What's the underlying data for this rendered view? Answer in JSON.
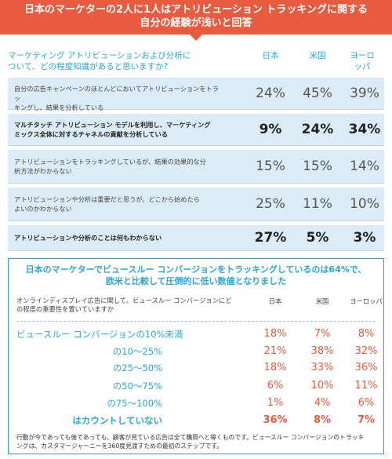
{
  "banner": {
    "line1": "日本のマーケターの2人に1人はアトリビューション トラッキングに関する",
    "line2": "自分の経験が浅いと回答"
  },
  "section1": {
    "question_line1": "マーケティング アトリビューションおよび分析に",
    "question_line2": "ついて、どの程度知識があると思いますか?",
    "columns": [
      "日本",
      "米国",
      "ヨーロッパ"
    ],
    "column_eu_line1": "ヨーロ",
    "column_eu_line2": "ッパ",
    "rows": [
      {
        "label_line1": "自分の広告キャンペーンのほとんどにおいてアトリビューションをトラッ",
        "label_line2": "キングし、結果を分析している",
        "values": [
          "24%",
          "45%",
          "39%"
        ]
      },
      {
        "label_line1": "マルチタッチ アトリビューション モデルを利用し、マーケティング",
        "label_line2": "ミックス全体に対するチャネルの貢献を分析している",
        "values": [
          "9%",
          "24%",
          "34%"
        ]
      },
      {
        "label_line1": "アトリビューションをトラッキングしているが、結果の効果的な分",
        "label_line2": "析方法がわからない",
        "values": [
          "15%",
          "15%",
          "14%"
        ]
      },
      {
        "label_line1": "アトリビューションや分析は重要だと思うが、どこから始めたら",
        "label_line2": "よいのかわからない",
        "values": [
          "25%",
          "11%",
          "10%"
        ]
      },
      {
        "label_line1": "アトリビューションや分析のことは何もわからない",
        "label_line2": "",
        "values": [
          "27%",
          "5%",
          "3%"
        ]
      }
    ]
  },
  "section2": {
    "title_line1": "日本のマーケターでビュースルー コンバージョンをトラッキングしているのは64%で、",
    "title_line2": "欧米と比較して圧倒的に低い数値となりました",
    "question_line1": "オンラインディスプレイ広告に関して、ビュースルー コンバージョンにど",
    "question_line2": "の程度の重要性を置いていますか",
    "columns": [
      "日本",
      "米国",
      "ヨーロッパ"
    ],
    "rows": [
      {
        "label": "ビュースルー コンバージョンの10%未満",
        "values": [
          "18%",
          "7%",
          "8%"
        ]
      },
      {
        "label": "の10〜25%",
        "values": [
          "21%",
          "38%",
          "32%"
        ]
      },
      {
        "label": "の25〜50%",
        "values": [
          "18%",
          "33%",
          "36%"
        ]
      },
      {
        "label": "の50〜75%",
        "values": [
          "6%",
          "10%",
          "11%"
        ]
      },
      {
        "label": "の75〜100%",
        "values": [
          "1%",
          "4%",
          "6%"
        ]
      },
      {
        "label": "はカウントしていない",
        "values": [
          "36%",
          "8%",
          "7%"
        ]
      }
    ],
    "footnote_line1": "行動が今であっても後であっても、顧客が見ている広告は全て購買へと導くものです。ビュースルー コンバージョンのトラッキ",
    "footnote_line2": "ングは、カスタマージャーニーを360度見渡すための最初のステップです。"
  },
  "chart_data": [
    {
      "type": "table",
      "title": "日本のマーケターの2人に1人はアトリビューション トラッキングに関する自分の経験が浅いと回答",
      "question": "マーケティング アトリビューションおよび分析について、どの程度知識があると思いますか?",
      "categories": [
        "自分の広告キャンペーンのほとんどにおいてアトリビューションをトラッキングし、結果を分析している",
        "マルチタッチ アトリビューション モデルを利用し、マーケティングミックス全体に対するチャネルの貢献を分析している",
        "アトリビューションをトラッキングしているが、結果の効果的な分析方法がわからない",
        "アトリビューションや分析は重要だと思うが、どこから始めたらよいのかわからない",
        "アトリビューションや分析のことは何もわからない"
      ],
      "series": [
        {
          "name": "日本",
          "values": [
            24,
            9,
            15,
            25,
            27
          ]
        },
        {
          "name": "米国",
          "values": [
            45,
            24,
            15,
            11,
            5
          ]
        },
        {
          "name": "ヨーロッパ",
          "values": [
            39,
            34,
            14,
            10,
            3
          ]
        }
      ]
    },
    {
      "type": "table",
      "title": "日本のマーケターでビュースルー コンバージョンをトラッキングしているのは64%で、欧米と比較して圧倒的に低い数値となりました",
      "question": "オンラインディスプレイ広告に関して、ビュースルー コンバージョンにどの程度の重要性を置いていますか",
      "categories": [
        "ビュースルー コンバージョンの10%未満",
        "の10〜25%",
        "の25〜50%",
        "の50〜75%",
        "の75〜100%",
        "はカウントしていない"
      ],
      "series": [
        {
          "name": "日本",
          "values": [
            18,
            21,
            18,
            6,
            1,
            36
          ]
        },
        {
          "name": "米国",
          "values": [
            7,
            38,
            33,
            10,
            4,
            8
          ]
        },
        {
          "name": "ヨーロッパ",
          "values": [
            8,
            32,
            36,
            11,
            6,
            7
          ]
        }
      ]
    }
  ]
}
